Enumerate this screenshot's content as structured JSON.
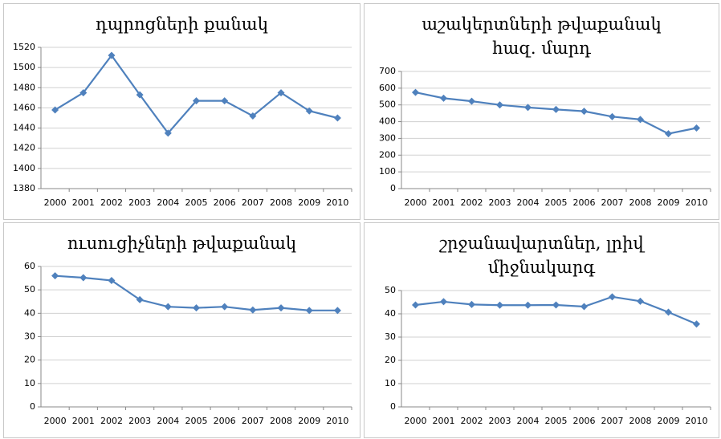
{
  "chart_data": [
    {
      "type": "line",
      "title": "դպրոցների քանակ",
      "categories": [
        "2000",
        "2001",
        "2002",
        "2003",
        "2004",
        "2005",
        "2006",
        "2007",
        "2008",
        "2009",
        "2010"
      ],
      "series": [
        {
          "color": "#4f81bd",
          "values": [
            1458,
            1475,
            1512,
            1473,
            1435,
            1467,
            1467,
            1452,
            1475,
            1457,
            1450
          ]
        }
      ],
      "ylim": [
        1380,
        1520
      ],
      "yticks": [
        1380,
        1400,
        1420,
        1440,
        1460,
        1480,
        1500,
        1520
      ],
      "grid": true
    },
    {
      "type": "line",
      "title": "աշակերտների թվաքանակ",
      "subtitle": "հազ. մարդ",
      "categories": [
        "2000",
        "2001",
        "2002",
        "2003",
        "2004",
        "2005",
        "2006",
        "2007",
        "2008",
        "2009",
        "2010"
      ],
      "series": [
        {
          "color": "#4f81bd",
          "values": [
            575,
            540,
            522,
            500,
            485,
            473,
            462,
            430,
            413,
            328,
            362
          ]
        }
      ],
      "ylim": [
        0,
        700
      ],
      "yticks": [
        0,
        100,
        200,
        300,
        400,
        500,
        600,
        700
      ],
      "grid": true
    },
    {
      "type": "line",
      "title": "ուսուցիչների թվաքանակ",
      "categories": [
        "2000",
        "2001",
        "2002",
        "2003",
        "2004",
        "2005",
        "2006",
        "2007",
        "2008",
        "2009",
        "2010"
      ],
      "series": [
        {
          "color": "#4f81bd",
          "values": [
            56,
            55.2,
            54,
            45.8,
            42.8,
            42.3,
            42.8,
            41.4,
            42.3,
            41.2,
            41.2
          ]
        }
      ],
      "ylim": [
        0,
        60
      ],
      "yticks": [
        0,
        10,
        20,
        30,
        40,
        50,
        60
      ],
      "grid": true
    },
    {
      "type": "line",
      "title": "շրջանավարտներ, լրիվ\nմիջնակարգ",
      "categories": [
        "2000",
        "2001",
        "2002",
        "2003",
        "2004",
        "2005",
        "2006",
        "2007",
        "2008",
        "2009",
        "2010"
      ],
      "series": [
        {
          "color": "#4f81bd",
          "values": [
            43.8,
            45.2,
            44,
            43.7,
            43.7,
            43.8,
            43.1,
            47.3,
            45.4,
            40.7,
            35.6
          ]
        }
      ],
      "ylim": [
        0,
        50
      ],
      "yticks": [
        0,
        10,
        20,
        30,
        40,
        50
      ],
      "grid": true
    }
  ]
}
